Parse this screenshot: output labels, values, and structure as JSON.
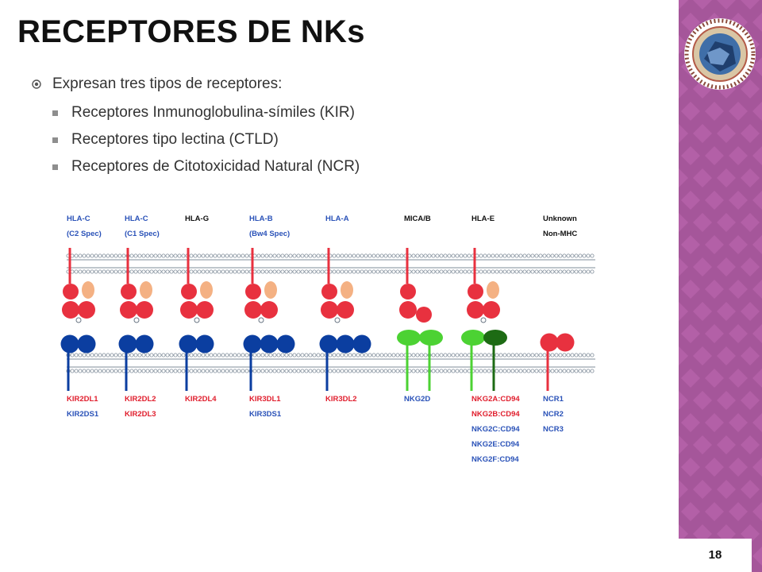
{
  "slide": {
    "title": "RECEPTORES DE NKs",
    "page_number": "18"
  },
  "bullets": [
    {
      "level": 1,
      "text": "Expresan tres tipos de receptores:"
    },
    {
      "level": 2,
      "text": "Receptores Inmunoglobulina-símiles  (KIR)"
    },
    {
      "level": 2,
      "text": "Receptores  tipo lectina (CTLD)"
    },
    {
      "level": 2,
      "text": "Receptores de Citotoxicidad Natural (NCR)"
    }
  ],
  "colors": {
    "red": "#e8313f",
    "blue": "#0b3ea0",
    "peach": "#f4b183",
    "lightgreen": "#4cd233",
    "darkgreen": "#1d6b14",
    "sidebar": "#a5569a",
    "sidebar_light": "#c06ab3"
  },
  "diagram": {
    "groups": [
      {
        "ligand": [
          "HLA-C",
          "(C2 Spec)"
        ],
        "ligand_color": "blue",
        "receptors": [
          {
            "text": "KIR2DL1",
            "color": "red"
          },
          {
            "text": "KIR2DS1",
            "color": "blue"
          }
        ],
        "head": "kir",
        "blue_domains": 2
      },
      {
        "ligand": [
          "HLA-C",
          "(C1 Spec)"
        ],
        "ligand_color": "blue",
        "receptors": [
          {
            "text": "KIR2DL2",
            "color": "red"
          },
          {
            "text": "KIR2DL3",
            "color": "red"
          }
        ],
        "head": "kir",
        "blue_domains": 2
      },
      {
        "ligand": [
          "HLA-G"
        ],
        "ligand_color": "black",
        "receptors": [
          {
            "text": "KIR2DL4",
            "color": "red"
          }
        ],
        "head": "kir",
        "blue_domains": 2
      },
      {
        "ligand": [
          "HLA-B",
          "(Bw4 Spec)"
        ],
        "ligand_color": "blue",
        "receptors": [
          {
            "text": "KIR3DL1",
            "color": "red"
          },
          {
            "text": "KIR3DS1",
            "color": "blue"
          }
        ],
        "head": "kir",
        "blue_domains": 3
      },
      {
        "ligand": [
          "HLA-A"
        ],
        "ligand_color": "blue",
        "receptors": [
          {
            "text": "KIR3DL2",
            "color": "red"
          }
        ],
        "head": "kir",
        "blue_domains": 3
      },
      {
        "ligand": [
          "MICA/B"
        ],
        "ligand_color": "black",
        "receptors": [
          {
            "text": "NKG2D",
            "color": "blue"
          }
        ],
        "head": "mic",
        "blue_domains": 0
      },
      {
        "ligand": [
          "HLA-E"
        ],
        "ligand_color": "black",
        "receptors": [
          {
            "text": "NKG2A:CD94",
            "color": "red"
          },
          {
            "text": "NKG2B:CD94",
            "color": "red"
          },
          {
            "text": "NKG2C:CD94",
            "color": "blue"
          },
          {
            "text": "NKG2E:CD94",
            "color": "blue"
          },
          {
            "text": "NKG2F:CD94",
            "color": "blue"
          }
        ],
        "head": "kir",
        "blue_domains": 0
      },
      {
        "ligand": [
          "Unknown",
          "Non-MHC"
        ],
        "ligand_color": "black",
        "receptors": [
          {
            "text": "NCR1",
            "color": "blue"
          },
          {
            "text": "NCR2",
            "color": "blue"
          },
          {
            "text": "NCR3",
            "color": "blue"
          }
        ],
        "head": "none",
        "blue_domains": 0
      }
    ]
  }
}
